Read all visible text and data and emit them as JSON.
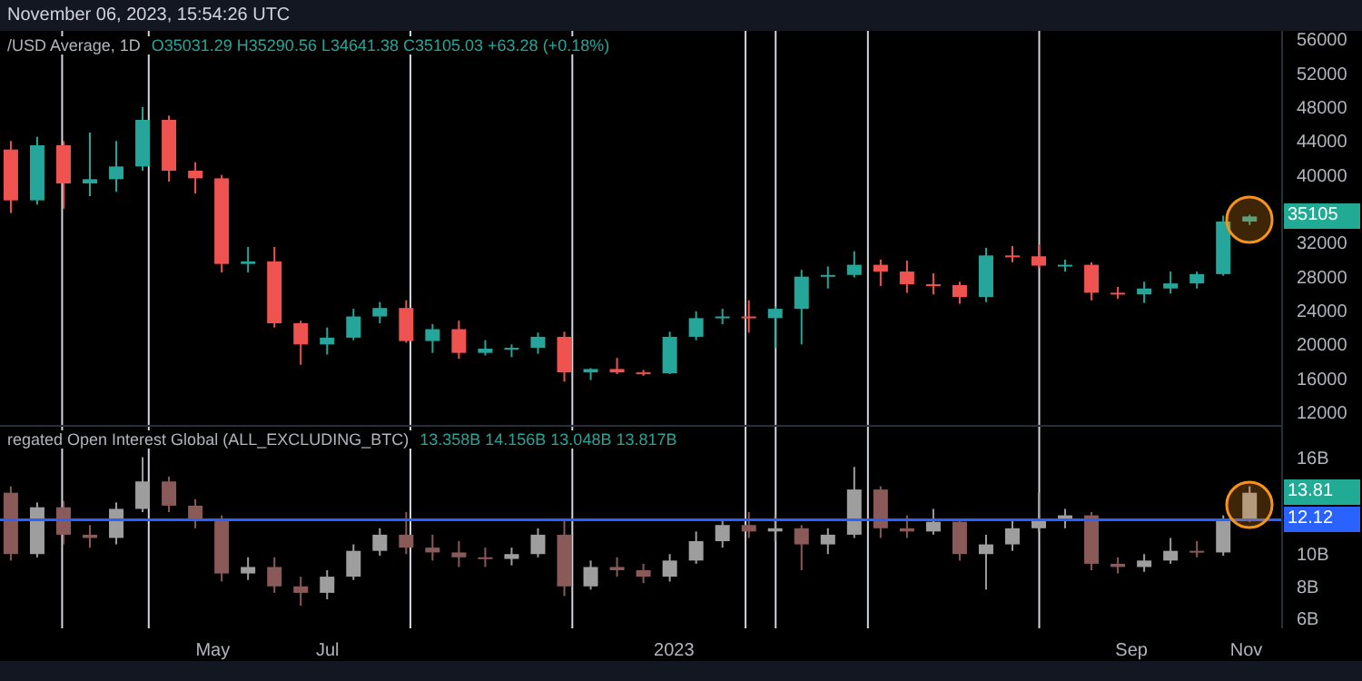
{
  "chart_data": [
    {
      "type": "candlestick",
      "title": "/USD Average, 1D",
      "subtitle": "O35031.29 H35290.56 L34641.38 C35105.03 +63.28 (+0.18%)",
      "annotations": [
        "November 06, 2023, 15:54:26 UTC",
        "35105"
      ],
      "x": [
        "2022-01-14",
        "2022-01-28",
        "2022-02-11",
        "2022-02-25",
        "2022-03-11",
        "2022-03-25",
        "2022-04-08",
        "2022-04-22",
        "2022-05-06",
        "2022-05-20",
        "2022-06-03",
        "2022-06-17",
        "2022-07-01",
        "2022-07-15",
        "2022-07-29",
        "2022-08-12",
        "2022-08-26",
        "2022-09-09",
        "2022-09-23",
        "2022-10-07",
        "2022-10-21",
        "2022-11-04",
        "2022-11-18",
        "2022-12-02",
        "2022-12-16",
        "2022-12-30",
        "2023-01-13",
        "2023-01-27",
        "2023-02-10",
        "2023-02-24",
        "2023-03-10",
        "2023-03-24",
        "2023-04-07",
        "2023-04-21",
        "2023-05-05",
        "2023-05-19",
        "2023-06-02",
        "2023-06-16",
        "2023-06-30",
        "2023-07-14",
        "2023-07-28",
        "2023-08-11",
        "2023-08-25",
        "2023-09-08",
        "2023-09-22",
        "2023-10-06",
        "2023-10-20",
        "2023-11-03"
      ],
      "ohlc": [
        [
          43000,
          44000,
          35500,
          37000
        ],
        [
          37000,
          44500,
          36500,
          43500
        ],
        [
          43500,
          44000,
          36000,
          39000
        ],
        [
          39000,
          45000,
          37500,
          39500
        ],
        [
          39500,
          44000,
          38000,
          41000
        ],
        [
          41000,
          48000,
          40500,
          46500
        ],
        [
          46500,
          47000,
          39200,
          40500
        ],
        [
          40500,
          41500,
          37800,
          39600
        ],
        [
          39600,
          40000,
          28500,
          29500
        ],
        [
          29500,
          31500,
          28500,
          29800
        ],
        [
          29800,
          31500,
          22000,
          22500
        ],
        [
          22500,
          22800,
          17600,
          20000
        ],
        [
          20000,
          22000,
          18800,
          20800
        ],
        [
          20800,
          24200,
          20500,
          23300
        ],
        [
          23300,
          25000,
          22500,
          24300
        ],
        [
          24300,
          25200,
          20200,
          20400
        ],
        [
          20400,
          22400,
          19000,
          21800
        ],
        [
          21800,
          22800,
          18300,
          19000
        ],
        [
          19000,
          20500,
          18700,
          19500
        ],
        [
          19500,
          20000,
          18500,
          19600
        ],
        [
          19600,
          21400,
          18900,
          20900
        ],
        [
          20900,
          21500,
          15600,
          16700
        ],
        [
          16700,
          17200,
          15800,
          17100
        ],
        [
          17100,
          18400,
          16500,
          16700
        ],
        [
          16700,
          17000,
          16300,
          16600
        ],
        [
          16600,
          21500,
          16500,
          20900
        ],
        [
          20900,
          23900,
          20500,
          23100
        ],
        [
          23100,
          24200,
          22400,
          23300
        ],
        [
          23300,
          25200,
          21400,
          23100
        ],
        [
          23100,
          24500,
          19600,
          24200
        ],
        [
          24200,
          28800,
          20000,
          28000
        ],
        [
          28000,
          29200,
          26600,
          28200
        ],
        [
          28200,
          31000,
          27900,
          29400
        ],
        [
          29400,
          30000,
          26900,
          28600
        ],
        [
          28600,
          29900,
          26100,
          27100
        ],
        [
          27100,
          28400,
          25900,
          27000
        ],
        [
          27000,
          27400,
          24800,
          25600
        ],
        [
          25600,
          31400,
          25000,
          30500
        ],
        [
          30500,
          31600,
          29700,
          30400
        ],
        [
          30400,
          31800,
          29000,
          29300
        ],
        [
          29300,
          30000,
          28600,
          29400
        ],
        [
          29400,
          29700,
          25200,
          26100
        ],
        [
          26100,
          26800,
          25400,
          25900
        ],
        [
          25900,
          27400,
          24900,
          26600
        ],
        [
          26600,
          28600,
          26000,
          27200
        ],
        [
          27200,
          28600,
          26600,
          28300
        ],
        [
          28300,
          35200,
          28100,
          34500
        ],
        [
          34500,
          35300,
          34100,
          35100
        ]
      ],
      "colors": [
        "#ef5350",
        "#26a69a",
        "#ef5350",
        "#26a69a",
        "#26a69a",
        "#26a69a",
        "#ef5350",
        "#ef5350",
        "#ef5350",
        "#26a69a",
        "#ef5350",
        "#ef5350",
        "#26a69a",
        "#26a69a",
        "#26a69a",
        "#ef5350",
        "#26a69a",
        "#ef5350",
        "#26a69a",
        "#26a69a",
        "#26a69a",
        "#ef5350",
        "#26a69a",
        "#ef5350",
        "#ef5350",
        "#26a69a",
        "#26a69a",
        "#26a69a",
        "#ef5350",
        "#26a69a",
        "#26a69a",
        "#26a69a",
        "#26a69a",
        "#ef5350",
        "#ef5350",
        "#ef5350",
        "#ef5350",
        "#26a69a",
        "#ef5350",
        "#ef5350",
        "#26a69a",
        "#ef5350",
        "#ef5350",
        "#26a69a",
        "#26a69a",
        "#26a69a",
        "#26a69a",
        "#26a69a"
      ],
      "xlim": [
        "2022-01-08",
        "2023-11-20"
      ],
      "ylim": [
        10500,
        57000
      ],
      "yticks": [
        12000,
        16000,
        20000,
        24000,
        28000,
        32000,
        40000,
        44000,
        48000,
        52000,
        56000
      ],
      "tick_labels": "y",
      "ref_lines": [
        {
          "axis": "x",
          "value": "2022-02-10",
          "color": "#d1d4dc"
        },
        {
          "axis": "x",
          "value": "2022-03-28",
          "color": "#d1d4dc"
        },
        {
          "axis": "x",
          "value": "2022-08-14",
          "color": "#d1d4dc"
        },
        {
          "axis": "x",
          "value": "2022-11-08",
          "color": "#d1d4dc"
        },
        {
          "axis": "x",
          "value": "2023-02-08",
          "color": "#d1d4dc"
        },
        {
          "axis": "x",
          "value": "2023-02-24",
          "color": "#d1d4dc"
        },
        {
          "axis": "x",
          "value": "2023-04-14",
          "color": "#d1d4dc"
        },
        {
          "axis": "x",
          "value": "2023-07-14",
          "color": "#d1d4dc"
        }
      ]
    },
    {
      "type": "candlestick",
      "title": "regated Open Interest Global (ALL_EXCLUDING_BTC)",
      "subtitle": "13.358B 14.156B 13.048B 13.817B",
      "annotations": [
        "13.81"
      ],
      "x": [
        "2022-01-14",
        "2022-01-28",
        "2022-02-11",
        "2022-02-25",
        "2022-03-11",
        "2022-03-25",
        "2022-04-08",
        "2022-04-22",
        "2022-05-06",
        "2022-05-20",
        "2022-06-03",
        "2022-06-17",
        "2022-07-01",
        "2022-07-15",
        "2022-07-29",
        "2022-08-12",
        "2022-08-26",
        "2022-09-09",
        "2022-09-23",
        "2022-10-07",
        "2022-10-21",
        "2022-11-04",
        "2022-11-18",
        "2022-12-02",
        "2022-12-16",
        "2022-12-30",
        "2023-01-13",
        "2023-01-27",
        "2023-02-10",
        "2023-02-24",
        "2023-03-10",
        "2023-03-24",
        "2023-04-07",
        "2023-04-21",
        "2023-05-05",
        "2023-05-19",
        "2023-06-02",
        "2023-06-16",
        "2023-06-30",
        "2023-07-14",
        "2023-07-28",
        "2023-08-11",
        "2023-08-25",
        "2023-09-08",
        "2023-09-22",
        "2023-10-06",
        "2023-10-20",
        "2023-11-03"
      ],
      "ohlc": [
        [
          13.8,
          14.2,
          9.6,
          10.0
        ],
        [
          10.0,
          13.2,
          9.8,
          12.9
        ],
        [
          12.9,
          13.3,
          10.6,
          11.2
        ],
        [
          11.2,
          11.8,
          10.4,
          11.0
        ],
        [
          11.0,
          13.2,
          10.6,
          12.8
        ],
        [
          12.8,
          16.0,
          12.6,
          14.5
        ],
        [
          14.5,
          14.8,
          12.6,
          13.0
        ],
        [
          13.0,
          13.4,
          11.6,
          12.2
        ],
        [
          12.2,
          12.4,
          8.3,
          8.8
        ],
        [
          8.8,
          9.8,
          8.4,
          9.2
        ],
        [
          9.2,
          9.8,
          7.6,
          8.0
        ],
        [
          8.0,
          8.6,
          6.8,
          7.6
        ],
        [
          7.6,
          9.0,
          7.2,
          8.6
        ],
        [
          8.6,
          10.6,
          8.4,
          10.2
        ],
        [
          10.2,
          11.6,
          9.9,
          11.2
        ],
        [
          11.2,
          12.6,
          10.0,
          10.4
        ],
        [
          10.4,
          11.2,
          9.6,
          10.1
        ],
        [
          10.1,
          10.8,
          9.2,
          9.8
        ],
        [
          9.8,
          10.4,
          9.2,
          9.7
        ],
        [
          9.7,
          10.4,
          9.3,
          10.0
        ],
        [
          10.0,
          11.6,
          9.8,
          11.2
        ],
        [
          11.2,
          12.2,
          7.4,
          8.0
        ],
        [
          8.0,
          9.6,
          7.8,
          9.2
        ],
        [
          9.2,
          9.8,
          8.6,
          9.0
        ],
        [
          9.0,
          9.4,
          8.2,
          8.6
        ],
        [
          8.6,
          10.0,
          8.3,
          9.6
        ],
        [
          9.6,
          11.4,
          9.4,
          10.8
        ],
        [
          10.8,
          12.2,
          10.4,
          11.8
        ],
        [
          11.8,
          12.6,
          11.0,
          11.4
        ],
        [
          11.4,
          12.4,
          10.8,
          11.6
        ],
        [
          11.6,
          11.8,
          9.0,
          10.6
        ],
        [
          10.6,
          11.6,
          10.0,
          11.2
        ],
        [
          11.2,
          15.4,
          11.0,
          14.0
        ],
        [
          14.0,
          14.2,
          11.0,
          11.6
        ],
        [
          11.6,
          12.4,
          11.0,
          11.4
        ],
        [
          11.4,
          12.8,
          11.2,
          12.0
        ],
        [
          12.0,
          12.2,
          9.6,
          10.0
        ],
        [
          10.0,
          11.2,
          7.8,
          10.6
        ],
        [
          10.6,
          12.2,
          10.2,
          11.6
        ],
        [
          11.6,
          13.8,
          11.4,
          12.2
        ],
        [
          12.2,
          12.8,
          11.6,
          12.4
        ],
        [
          12.4,
          12.6,
          9.0,
          9.4
        ],
        [
          9.4,
          9.8,
          8.8,
          9.2
        ],
        [
          9.2,
          10.0,
          8.9,
          9.6
        ],
        [
          9.6,
          11.0,
          9.4,
          10.2
        ],
        [
          10.2,
          10.8,
          9.8,
          10.1
        ],
        [
          10.1,
          12.4,
          9.9,
          12.2
        ],
        [
          12.2,
          14.2,
          12.0,
          13.8
        ]
      ],
      "colors": [
        "#8a5a58",
        "#9e9e9e",
        "#8a5a58",
        "#8a5a58",
        "#9e9e9e",
        "#9e9e9e",
        "#8a5a58",
        "#8a5a58",
        "#8a5a58",
        "#9e9e9e",
        "#8a5a58",
        "#8a5a58",
        "#9e9e9e",
        "#9e9e9e",
        "#9e9e9e",
        "#8a5a58",
        "#8a5a58",
        "#8a5a58",
        "#8a5a58",
        "#9e9e9e",
        "#9e9e9e",
        "#8a5a58",
        "#9e9e9e",
        "#8a5a58",
        "#8a5a58",
        "#9e9e9e",
        "#9e9e9e",
        "#9e9e9e",
        "#8a5a58",
        "#9e9e9e",
        "#8a5a58",
        "#9e9e9e",
        "#9e9e9e",
        "#8a5a58",
        "#8a5a58",
        "#9e9e9e",
        "#8a5a58",
        "#9e9e9e",
        "#9e9e9e",
        "#9e9e9e",
        "#9e9e9e",
        "#8a5a58",
        "#8a5a58",
        "#9e9e9e",
        "#9e9e9e",
        "#8a5a58",
        "#9e9e9e",
        "#9e9e9e"
      ],
      "xlim": [
        "2022-01-08",
        "2023-11-20"
      ],
      "xticks": [
        {
          "value": "2022-05-01",
          "label": "May"
        },
        {
          "value": "2022-07-01",
          "label": "Jul"
        },
        {
          "value": "2023-01-01",
          "label": "2023"
        },
        {
          "value": "2023-09-01",
          "label": "Sep"
        },
        {
          "value": "2023-11-01",
          "label": "Nov"
        }
      ],
      "ylim": [
        5.4,
        18
      ],
      "yticks": [
        {
          "value": 6,
          "label": "6B"
        },
        {
          "value": 8,
          "label": "8B"
        },
        {
          "value": 10,
          "label": "10B"
        },
        {
          "value": 16,
          "label": "16B"
        }
      ],
      "ref_lines": [
        {
          "axis": "x",
          "value": "2022-02-10",
          "color": "#d1d4dc"
        },
        {
          "axis": "x",
          "value": "2022-03-28",
          "color": "#d1d4dc"
        },
        {
          "axis": "x",
          "value": "2022-08-14",
          "color": "#d1d4dc"
        },
        {
          "axis": "x",
          "value": "2022-11-08",
          "color": "#d1d4dc"
        },
        {
          "axis": "x",
          "value": "2023-02-08",
          "color": "#d1d4dc"
        },
        {
          "axis": "x",
          "value": "2023-02-24",
          "color": "#d1d4dc"
        },
        {
          "axis": "x",
          "value": "2023-04-14",
          "color": "#d1d4dc"
        },
        {
          "axis": "x",
          "value": "2023-07-14",
          "color": "#d1d4dc"
        },
        {
          "axis": "y",
          "value": 12.12,
          "label": "12.12",
          "color": "#2962ff"
        }
      ]
    }
  ]
}
